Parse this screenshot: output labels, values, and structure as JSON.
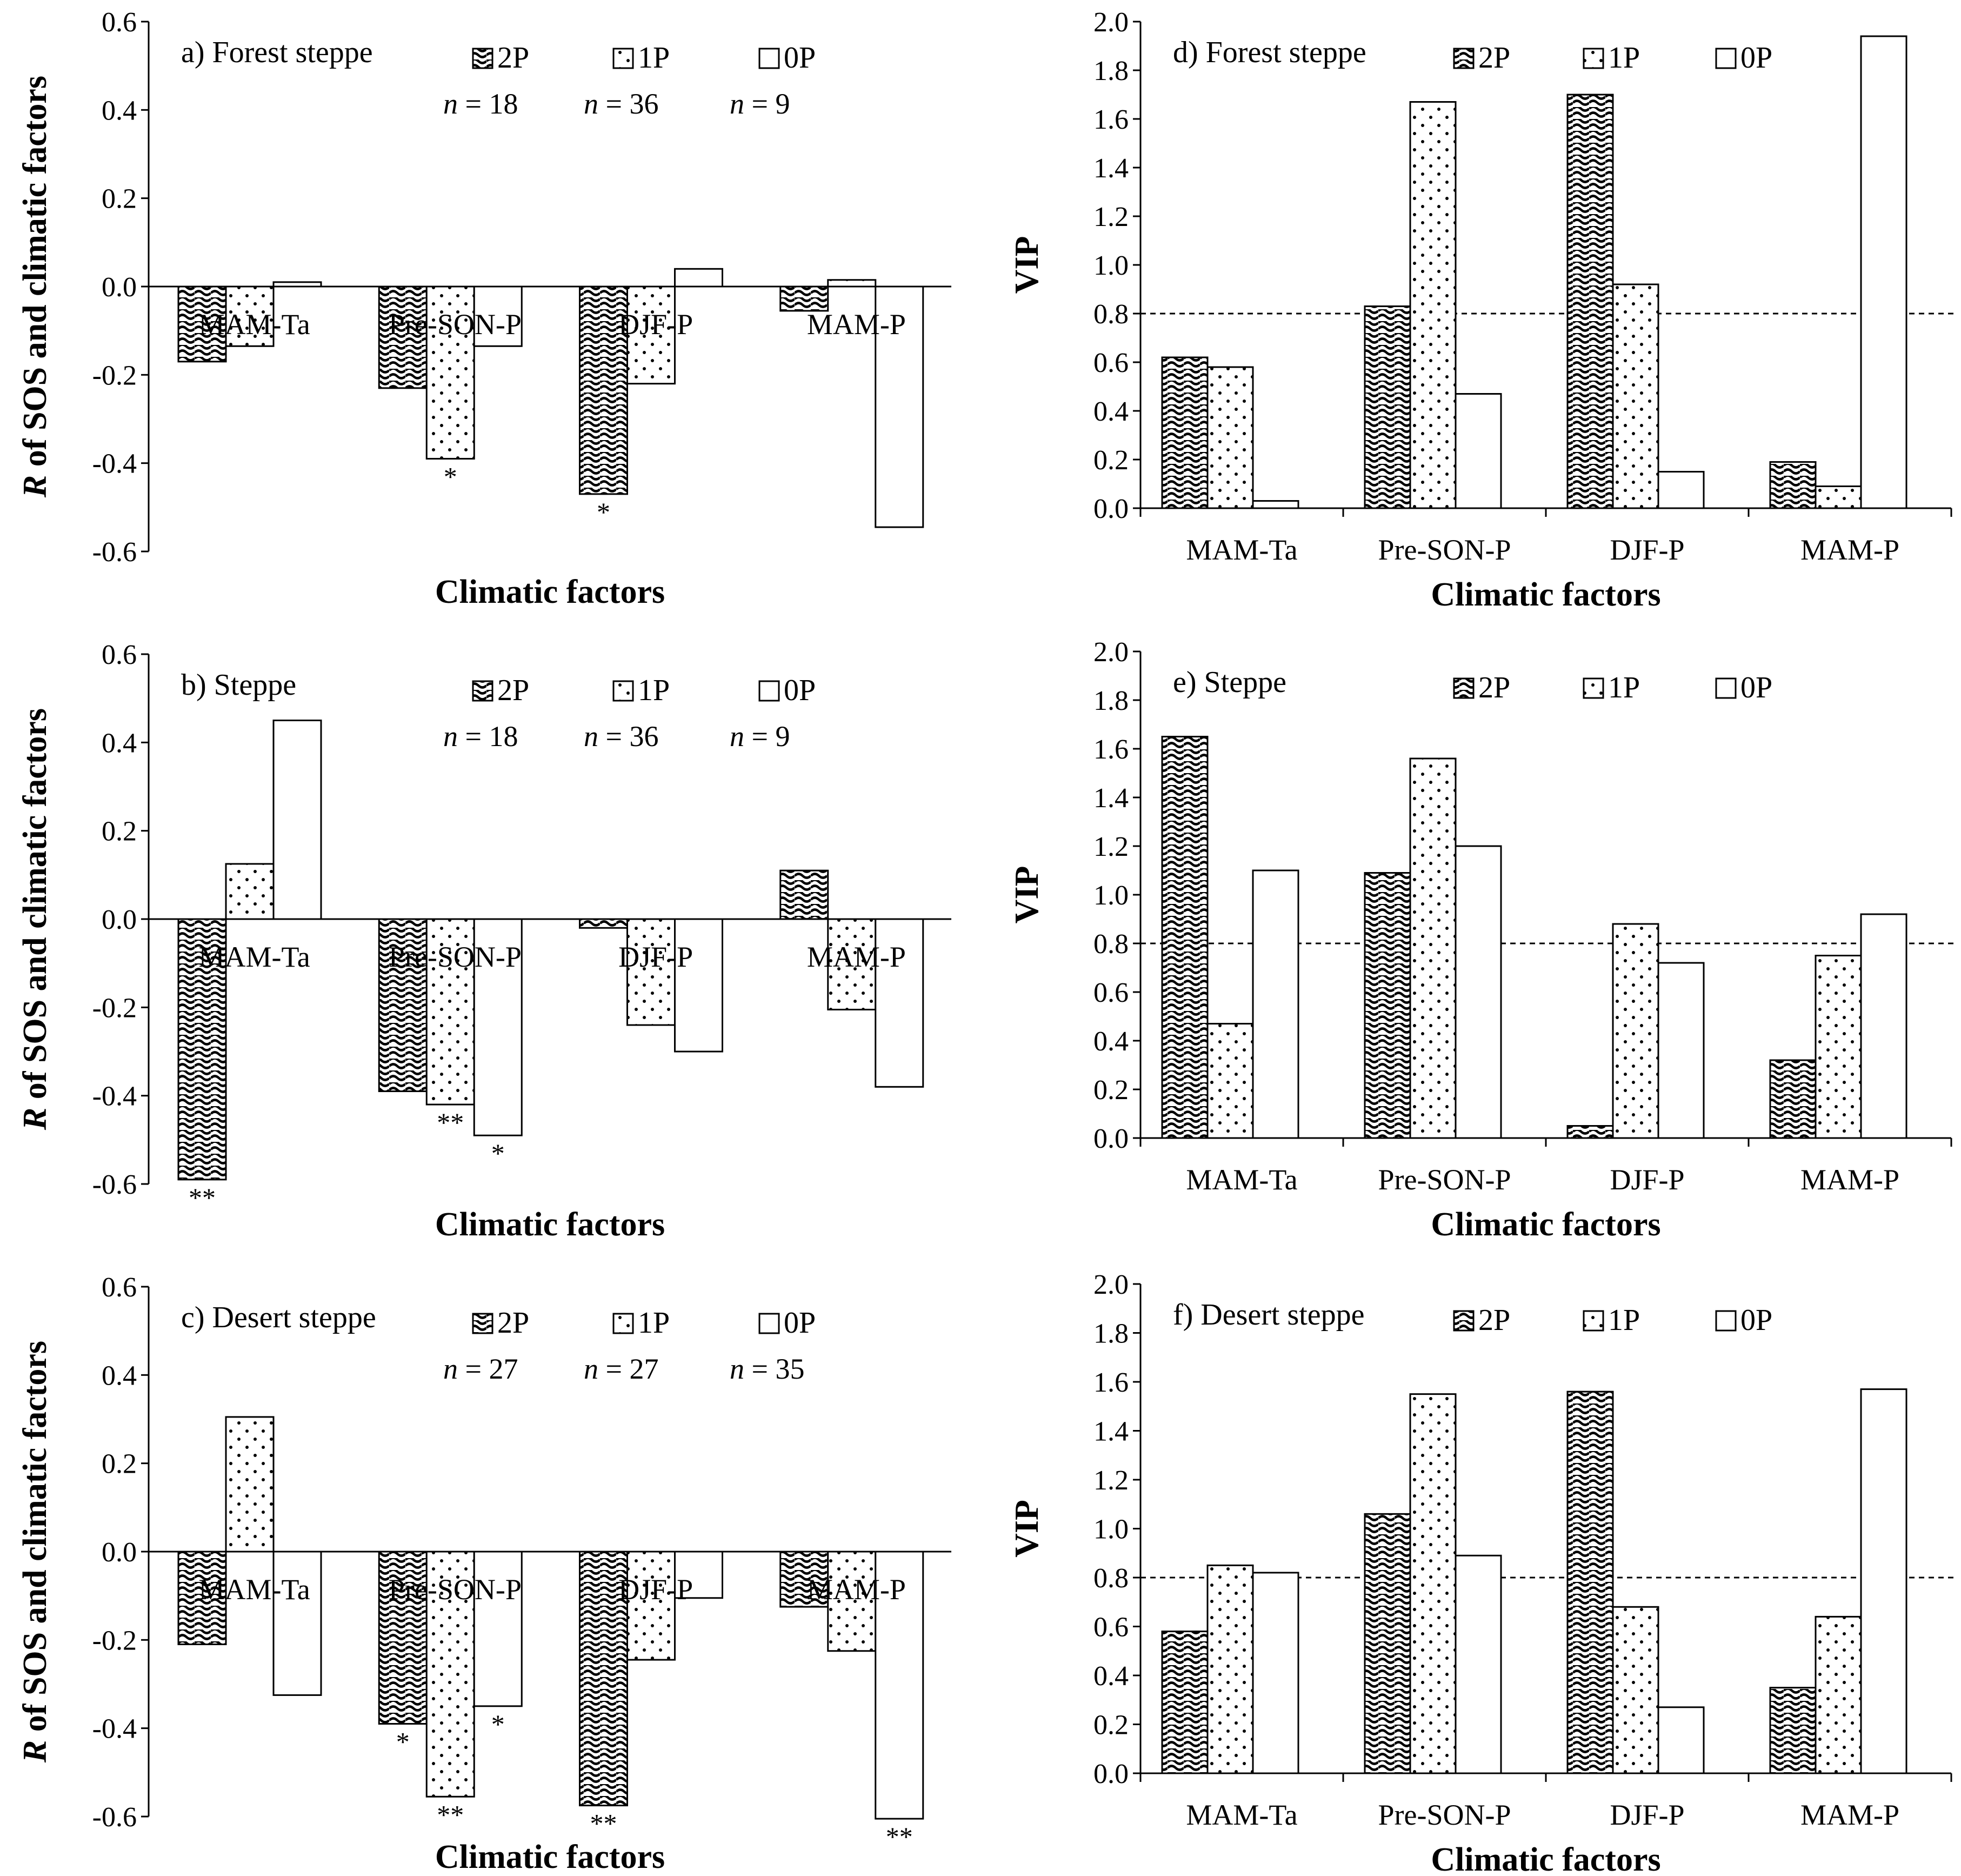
{
  "colors": {
    "stroke": "#000000",
    "background": "#ffffff"
  },
  "chart_data": [
    {
      "id": "a",
      "type": "bar",
      "title": "a) Forest steppe",
      "xlabel": "Climatic factors",
      "ylabel": "R of SOS and climatic factors",
      "ylim": [
        -0.6,
        0.6
      ],
      "yticks": [
        0.6,
        0.4,
        0.2,
        0.0,
        -0.2,
        -0.4,
        -0.6
      ],
      "categories": [
        "MAM-Ta",
        "Pre-SON-P",
        "DJF-P",
        "MAM-P"
      ],
      "series": [
        {
          "name": "2P",
          "n": "= 18",
          "values": [
            -0.17,
            -0.23,
            -0.47,
            -0.055
          ],
          "sig": [
            "",
            "",
            "*",
            ""
          ]
        },
        {
          "name": "1P",
          "n": "= 36",
          "values": [
            -0.135,
            -0.39,
            -0.22,
            0.015
          ],
          "sig": [
            "",
            "*",
            "",
            ""
          ]
        },
        {
          "name": "0P",
          "n": "= 9",
          "values": [
            0.01,
            -0.135,
            0.04,
            -0.545
          ],
          "sig": [
            "",
            "",
            "",
            ""
          ]
        }
      ]
    },
    {
      "id": "b",
      "type": "bar",
      "title": "b) Steppe",
      "xlabel": "Climatic factors",
      "ylabel": "R of SOS and climatic factors",
      "ylim": [
        -0.6,
        0.6
      ],
      "yticks": [
        0.6,
        0.4,
        0.2,
        0.0,
        -0.2,
        -0.4,
        -0.6
      ],
      "categories": [
        "MAM-Ta",
        "Pre-SON-P",
        "DJF-P",
        "MAM-P"
      ],
      "series": [
        {
          "name": "2P",
          "n": "= 18",
          "values": [
            -0.59,
            -0.39,
            -0.02,
            0.11
          ],
          "sig": [
            "**",
            "",
            "",
            ""
          ]
        },
        {
          "name": "1P",
          "n": "= 36",
          "values": [
            0.125,
            -0.42,
            -0.24,
            -0.205
          ],
          "sig": [
            "",
            "**",
            "",
            ""
          ]
        },
        {
          "name": "0P",
          "n": "= 9",
          "values": [
            0.45,
            -0.49,
            -0.3,
            -0.38
          ],
          "sig": [
            "",
            "*",
            "",
            ""
          ]
        }
      ]
    },
    {
      "id": "c",
      "type": "bar",
      "title": "c) Desert steppe",
      "xlabel": "Climatic factors",
      "ylabel": "R of SOS and climatic factors",
      "ylim": [
        -0.6,
        0.6
      ],
      "yticks": [
        0.6,
        0.4,
        0.2,
        0.0,
        -0.2,
        -0.4,
        -0.6
      ],
      "categories": [
        "MAM-Ta",
        "Pre-SON-P",
        "DJF-P",
        "MAM-P"
      ],
      "series": [
        {
          "name": "2P",
          "n": "= 27",
          "values": [
            -0.21,
            -0.39,
            -0.575,
            -0.125
          ],
          "sig": [
            "",
            "*",
            "**",
            ""
          ]
        },
        {
          "name": "1P",
          "n": "= 27",
          "values": [
            0.305,
            -0.555,
            -0.245,
            -0.225
          ],
          "sig": [
            "",
            "**",
            "",
            ""
          ]
        },
        {
          "name": "0P",
          "n": "= 35",
          "values": [
            -0.325,
            -0.35,
            -0.105,
            -0.605
          ],
          "sig": [
            "",
            "*",
            "",
            "**"
          ]
        }
      ]
    },
    {
      "id": "d",
      "type": "bar",
      "title": "d) Forest steppe",
      "xlabel": "Climatic factors",
      "ylabel": "VIP",
      "threshold": 0.8,
      "ylim": [
        0.0,
        2.0
      ],
      "yticks": [
        2.0,
        1.8,
        1.6,
        1.4,
        1.2,
        1.0,
        0.8,
        0.6,
        0.4,
        0.2,
        0.0
      ],
      "categories": [
        "MAM-Ta",
        "Pre-SON-P",
        "DJF-P",
        "MAM-P"
      ],
      "series": [
        {
          "name": "2P",
          "values": [
            0.62,
            0.83,
            1.7,
            0.19
          ]
        },
        {
          "name": "1P",
          "values": [
            0.58,
            1.67,
            0.92,
            0.09
          ]
        },
        {
          "name": "0P",
          "values": [
            0.03,
            0.47,
            0.15,
            1.94
          ]
        }
      ]
    },
    {
      "id": "e",
      "type": "bar",
      "title": "e) Steppe",
      "xlabel": "Climatic factors",
      "ylabel": "VIP",
      "threshold": 0.8,
      "ylim": [
        0.0,
        2.0
      ],
      "yticks": [
        2.0,
        1.8,
        1.6,
        1.4,
        1.2,
        1.0,
        0.8,
        0.6,
        0.4,
        0.2,
        0.0
      ],
      "categories": [
        "MAM-Ta",
        "Pre-SON-P",
        "DJF-P",
        "MAM-P"
      ],
      "series": [
        {
          "name": "2P",
          "values": [
            1.65,
            1.09,
            0.05,
            0.32
          ]
        },
        {
          "name": "1P",
          "values": [
            0.47,
            1.56,
            0.88,
            0.75
          ]
        },
        {
          "name": "0P",
          "values": [
            1.1,
            1.2,
            0.72,
            0.92
          ]
        }
      ]
    },
    {
      "id": "f",
      "type": "bar",
      "title": "f) Desert steppe",
      "xlabel": "Climatic factors",
      "ylabel": "VIP",
      "threshold": 0.8,
      "ylim": [
        0.0,
        2.0
      ],
      "yticks": [
        2.0,
        1.8,
        1.6,
        1.4,
        1.2,
        1.0,
        0.8,
        0.6,
        0.4,
        0.2,
        0.0
      ],
      "categories": [
        "MAM-Ta",
        "Pre-SON-P",
        "DJF-P",
        "MAM-P"
      ],
      "series": [
        {
          "name": "2P",
          "values": [
            0.58,
            1.06,
            1.56,
            0.35
          ]
        },
        {
          "name": "1P",
          "values": [
            0.85,
            1.55,
            0.68,
            0.64
          ]
        },
        {
          "name": "0P",
          "values": [
            0.82,
            0.89,
            0.27,
            1.57
          ]
        }
      ]
    }
  ]
}
